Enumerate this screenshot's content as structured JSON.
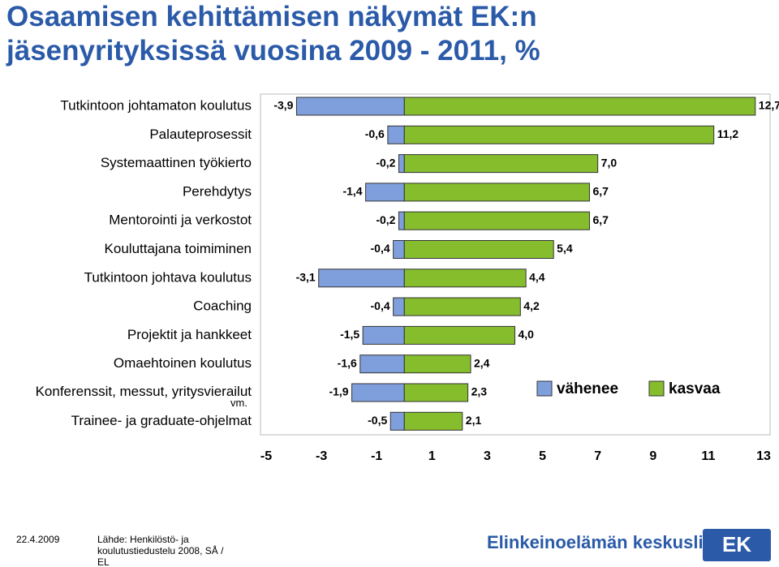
{
  "chart_data": {
    "type": "diverging-bar",
    "title": "Osaamisen kehittämisen näkymät EK:n jäsenyrityksissä vuosina 2009 - 2011, %",
    "categories": [
      "Tutkintoon johtamaton koulutus",
      "Palauteprosessit",
      "Systemaattinen työkierto",
      "Perehdytys",
      "Mentorointi ja verkostot",
      "Kouluttajana toimiminen",
      "Tutkintoon johtava koulutus",
      "Coaching",
      "Projektit ja hankkeet",
      "Omaehtoinen koulutus",
      "Konferenssit, messut, yritysvierailut vm.",
      "Trainee- ja graduate-ohjelmat"
    ],
    "series": [
      {
        "name": "vähenee",
        "color": "#7f9fdc",
        "values": [
          -3.9,
          -0.6,
          -0.2,
          -1.4,
          -0.2,
          -0.4,
          -3.1,
          -0.4,
          -1.5,
          -1.6,
          -1.9,
          -0.5
        ],
        "value_labels": [
          "-3,9",
          "-0,6",
          "-0,2",
          "-1,4",
          "-0,2",
          "-0,4",
          "-3,1",
          "-0,4",
          "-1,5",
          "-1,6",
          "-1,9",
          "-0,5"
        ]
      },
      {
        "name": "kasvaa",
        "color": "#86bd2c",
        "values": [
          12.7,
          11.2,
          7.0,
          6.7,
          6.7,
          5.4,
          4.4,
          4.2,
          4.0,
          2.4,
          2.3,
          2.1
        ],
        "value_labels": [
          "12,7",
          "11,2",
          "7,0",
          "6,7",
          "6,7",
          "5,4",
          "4,4",
          "4,2",
          "4,0",
          "2,4",
          "2,3",
          "2,1"
        ]
      }
    ],
    "xlim": [
      -5,
      13
    ],
    "xticks": [
      -5,
      -3,
      -1,
      1,
      3,
      5,
      7,
      9,
      11,
      13
    ]
  },
  "footer": {
    "date": "22.4.2009",
    "source": "Lähde: Henkilöstö- ja koulutustiedustelu 2008, SÅ / EL",
    "org": "Elinkeinoelämän keskusliitto",
    "logo": "EK"
  }
}
